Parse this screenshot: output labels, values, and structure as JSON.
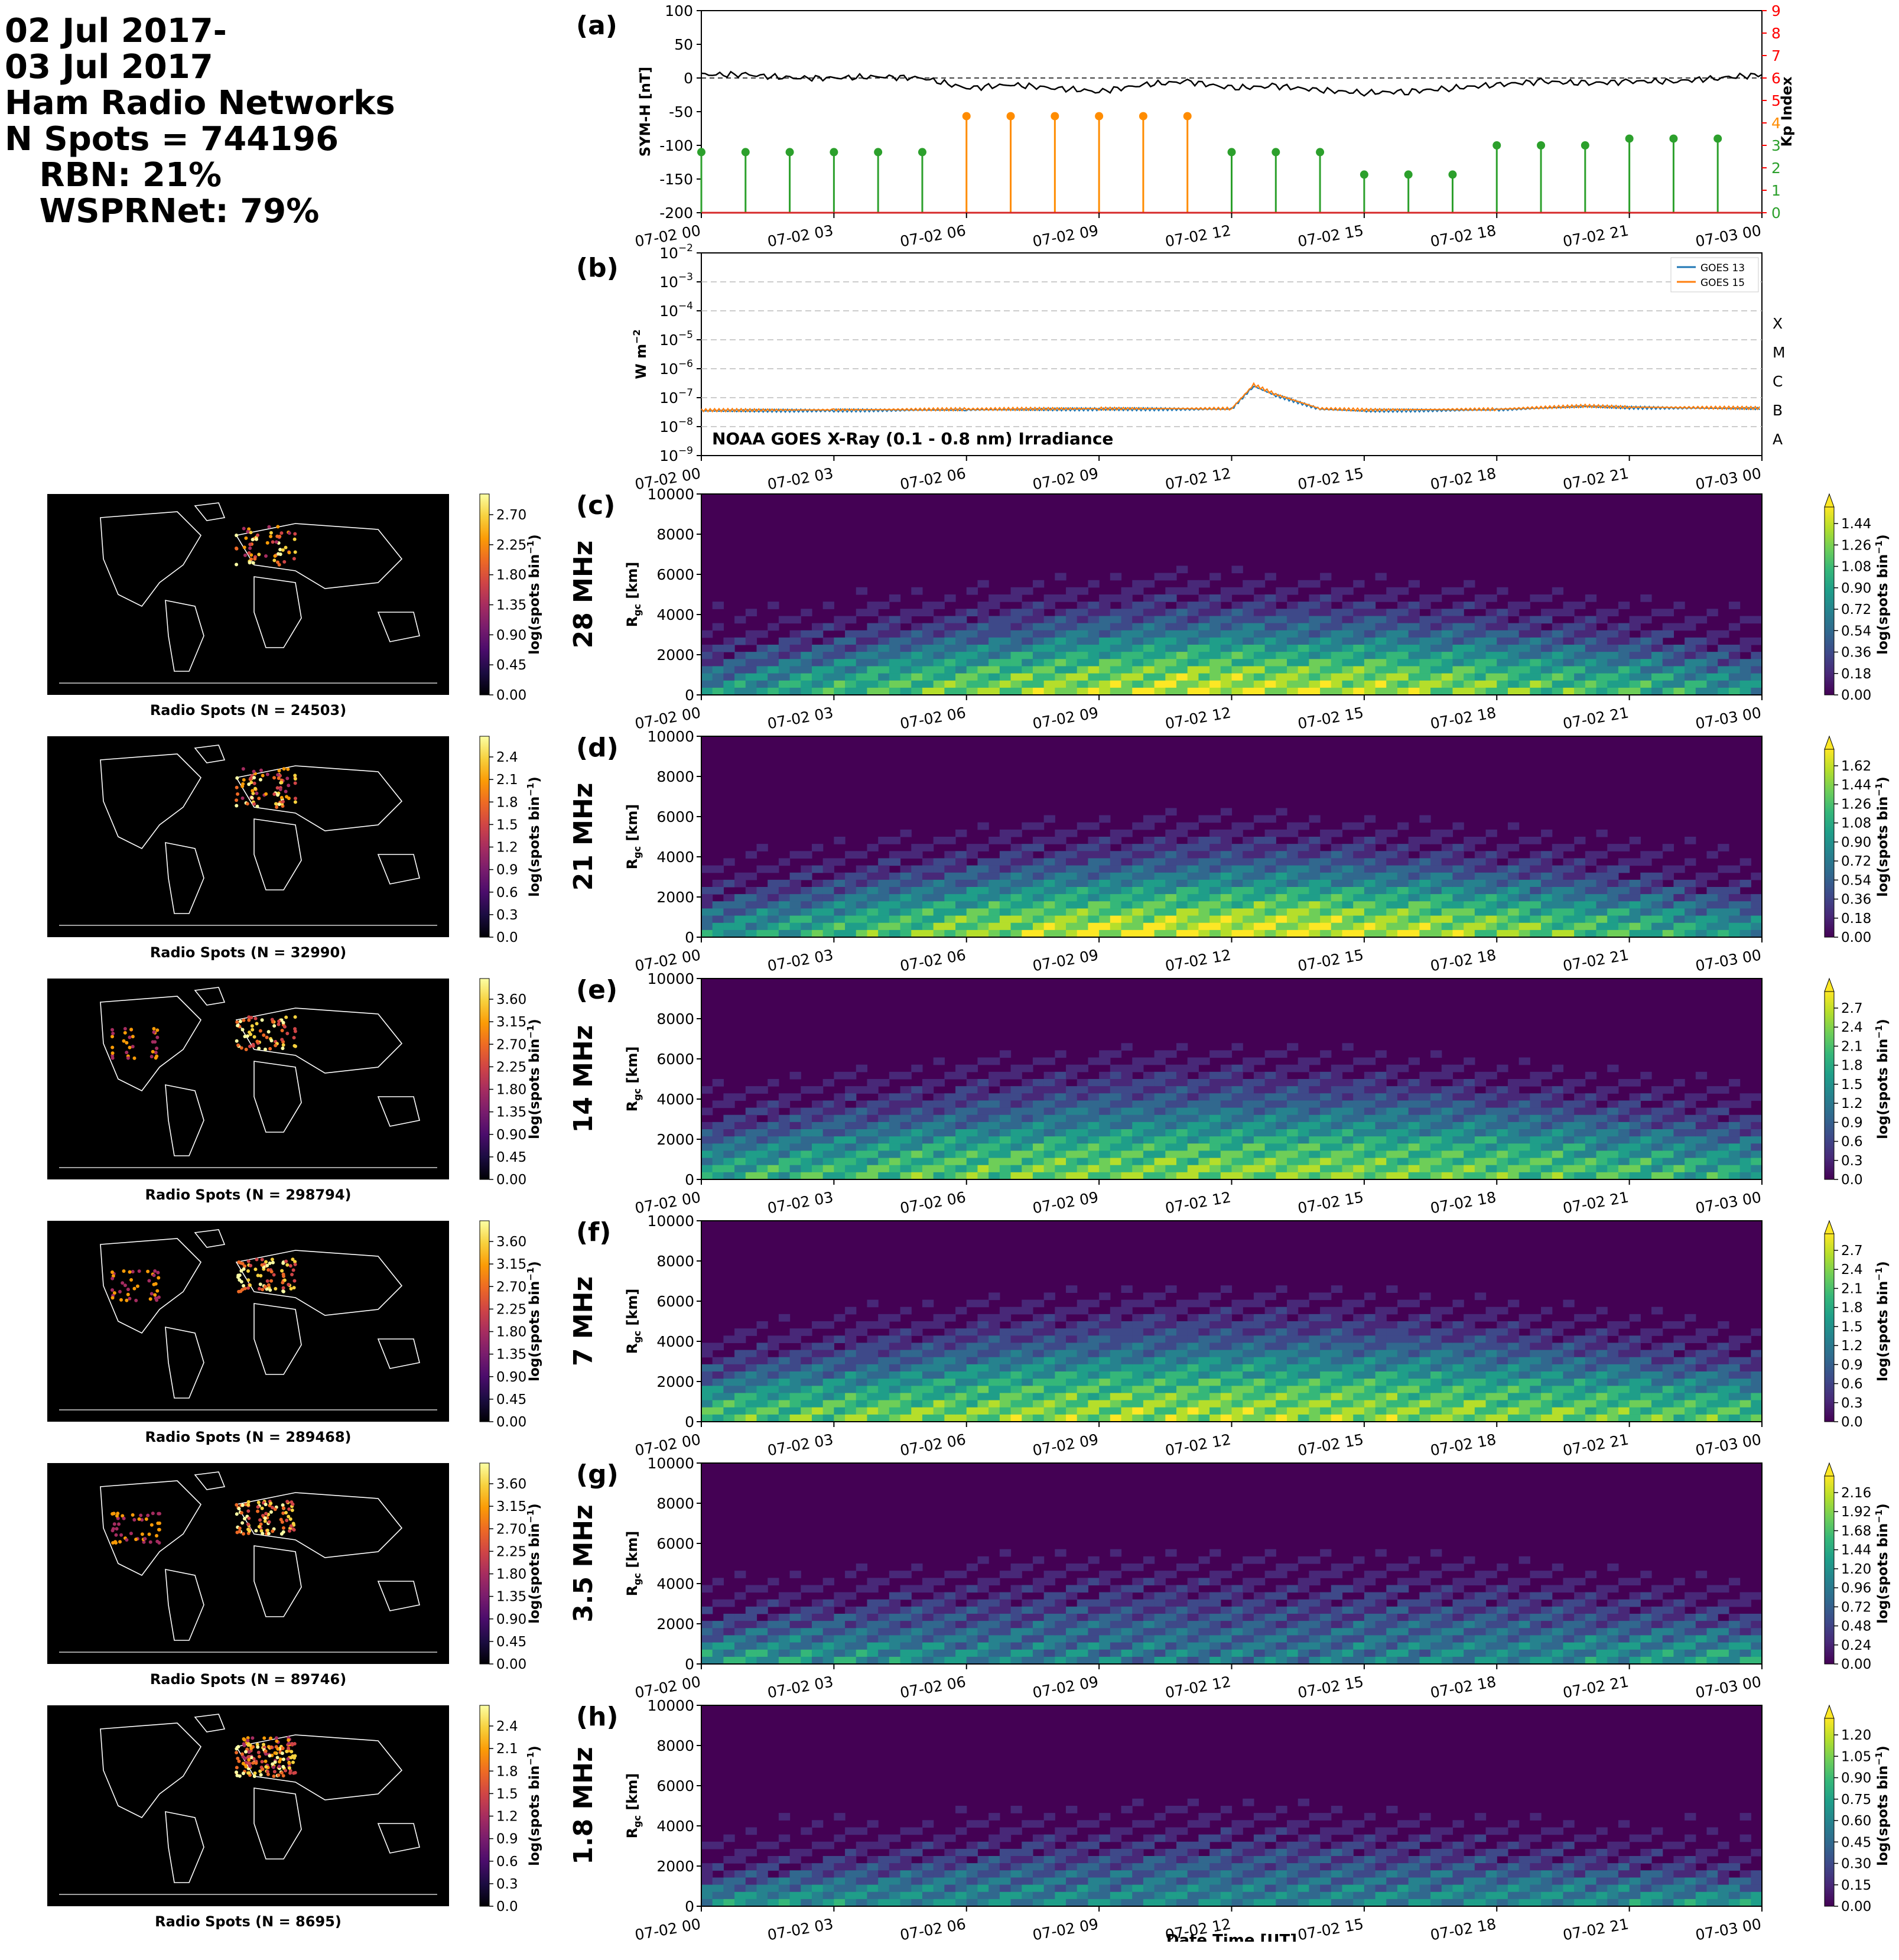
{
  "summary": {
    "line1": "02 Jul 2017-",
    "line2": "03 Jul 2017",
    "line3": "Ham Radio Networks",
    "line4": "N Spots = 744196",
    "line5": "   RBN: 21%",
    "line6": "   WSPRNet: 79%"
  },
  "time_ticks": [
    "07-02 00",
    "07-02 03",
    "07-02 06",
    "07-02 09",
    "07-02 12",
    "07-02 15",
    "07-02 18",
    "07-02 21",
    "07-03 00"
  ],
  "xlabel_bottom": "Date Time [UT]",
  "panel_a": {
    "letter": "(a)",
    "ylabel_left": "SYM-H [nT]",
    "ylabel_right": "Kp Index",
    "left_ticks": [
      "100",
      "50",
      "0",
      "-50",
      "-100",
      "-150",
      "-200"
    ],
    "right_ticks": [
      "9",
      "8",
      "7",
      "6",
      "5",
      "4",
      "3",
      "2",
      "1",
      "0"
    ]
  },
  "panel_b": {
    "letter": "(b)",
    "ylabel": "W m",
    "ylabel_sup": "−2",
    "annotation": "NOAA GOES X-Ray (0.1 - 0.8 nm) Irradiance",
    "legend": [
      "GOES 13",
      "GOES 15"
    ],
    "y_ticks_base": "10",
    "y_ticks_exp": [
      "−2",
      "−3",
      "−4",
      "−5",
      "−6",
      "−7",
      "−8",
      "−9"
    ],
    "flare_classes": [
      "X",
      "M",
      "C",
      "B",
      "A"
    ]
  },
  "rgc_label": "R",
  "rgc_sub": "gc",
  "rgc_unit": " [km]",
  "rgc_ticks": [
    "10000",
    "8000",
    "6000",
    "4000",
    "2000",
    "0"
  ],
  "cbar_label": "log(spots bin",
  "cbar_label_sup": "−1",
  "cbar_label_end": ")",
  "map_label_prefix": "Radio Spots (N = ",
  "bands": [
    {
      "letter": "(c)",
      "freq": "28 MHz",
      "n": "24503",
      "map_ticks": [
        "2.70",
        "2.25",
        "1.80",
        "1.35",
        "0.90",
        "0.45",
        "0.00"
      ],
      "ticks": [
        "1.44",
        "1.26",
        "1.08",
        "0.90",
        "0.72",
        "0.54",
        "0.36",
        "0.18",
        "0.00"
      ]
    },
    {
      "letter": "(d)",
      "freq": "21 MHz",
      "n": "32990",
      "map_ticks": [
        "2.4",
        "2.1",
        "1.8",
        "1.5",
        "1.2",
        "0.9",
        "0.6",
        "0.3",
        "0.0"
      ],
      "ticks": [
        "1.62",
        "1.44",
        "1.26",
        "1.08",
        "0.90",
        "0.72",
        "0.54",
        "0.36",
        "0.18",
        "0.00"
      ]
    },
    {
      "letter": "(e)",
      "freq": "14 MHz",
      "n": "298794",
      "map_ticks": [
        "3.60",
        "3.15",
        "2.70",
        "2.25",
        "1.80",
        "1.35",
        "0.90",
        "0.45",
        "0.00"
      ],
      "ticks": [
        "2.7",
        "2.4",
        "2.1",
        "1.8",
        "1.5",
        "1.2",
        "0.9",
        "0.6",
        "0.3",
        "0.0"
      ]
    },
    {
      "letter": "(f)",
      "freq": "7 MHz",
      "n": "289468",
      "map_ticks": [
        "3.60",
        "3.15",
        "2.70",
        "2.25",
        "1.80",
        "1.35",
        "0.90",
        "0.45",
        "0.00"
      ],
      "ticks": [
        "2.7",
        "2.4",
        "2.1",
        "1.8",
        "1.5",
        "1.2",
        "0.9",
        "0.6",
        "0.3",
        "0.0"
      ]
    },
    {
      "letter": "(g)",
      "freq": "3.5 MHz",
      "n": "89746",
      "map_ticks": [
        "3.60",
        "3.15",
        "2.70",
        "2.25",
        "1.80",
        "1.35",
        "0.90",
        "0.45",
        "0.00"
      ],
      "ticks": [
        "2.16",
        "1.92",
        "1.68",
        "1.44",
        "1.20",
        "0.96",
        "0.72",
        "0.48",
        "0.24",
        "0.00"
      ]
    },
    {
      "letter": "(h)",
      "freq": "1.8 MHz",
      "n": "8695",
      "map_ticks": [
        "2.4",
        "2.1",
        "1.8",
        "1.5",
        "1.2",
        "0.9",
        "0.6",
        "0.3",
        "0.0"
      ],
      "ticks": [
        "1.20",
        "1.05",
        "0.90",
        "0.75",
        "0.60",
        "0.45",
        "0.30",
        "0.15",
        "0.00"
      ]
    }
  ],
  "colors": {
    "sym_h": "#000000",
    "kp_low": "#2ca02c",
    "kp_storm": "#ff8c00",
    "goes13": "#1f77b4",
    "goes15": "#ff7f0e",
    "axis_right": "#ff0000"
  },
  "chart_data": [
    {
      "type": "line",
      "title": "",
      "ylabel": "SYM-H [nT]",
      "ylim": [
        -200,
        100
      ],
      "x": [
        "07-02 00",
        "07-02 01",
        "07-02 02",
        "07-02 03",
        "07-02 04",
        "07-02 05",
        "07-02 06",
        "07-02 07",
        "07-02 08",
        "07-02 09",
        "07-02 10",
        "07-02 11",
        "07-02 12",
        "07-02 13",
        "07-02 14",
        "07-02 15",
        "07-02 16",
        "07-02 17",
        "07-02 18",
        "07-02 19",
        "07-02 20",
        "07-02 21",
        "07-02 22",
        "07-02 23",
        "07-03 00"
      ],
      "series": [
        {
          "values": [
            5,
            5,
            0,
            0,
            2,
            0,
            -15,
            -10,
            -15,
            -20,
            -10,
            -5,
            -15,
            -12,
            -18,
            -22,
            -20,
            -15,
            -10,
            -5,
            -8,
            -5,
            -5,
            0,
            5
          ]
        }
      ]
    },
    {
      "type": "bar",
      "ylabel": "Kp Index",
      "ylim": [
        0,
        9
      ],
      "x": [
        "07-02 00",
        "07-02 01",
        "07-02 02",
        "07-02 03",
        "07-02 04",
        "07-02 05",
        "07-02 06",
        "07-02 07",
        "07-02 08",
        "07-02 09",
        "07-02 10",
        "07-02 11",
        "07-02 12",
        "07-02 13",
        "07-02 14",
        "07-02 15",
        "07-02 16",
        "07-02 17",
        "07-02 18",
        "07-02 19",
        "07-02 20",
        "07-02 21",
        "07-02 22",
        "07-02 23"
      ],
      "values": [
        2.7,
        2.7,
        2.7,
        2.7,
        2.7,
        2.7,
        4.3,
        4.3,
        4.3,
        4.3,
        4.3,
        4.3,
        2.7,
        2.7,
        2.7,
        1.7,
        1.7,
        1.7,
        3.0,
        3.0,
        3.0,
        3.3,
        3.3,
        3.3
      ]
    },
    {
      "type": "line",
      "ylabel": "W m−2",
      "log_scale": true,
      "ylim": [
        1e-09,
        0.01
      ],
      "x": [
        "07-02 00",
        "07-02 03",
        "07-02 06",
        "07-02 09",
        "07-02 12",
        "07-02 12.5",
        "07-02 13",
        "07-02 14",
        "07-02 15",
        "07-02 18",
        "07-02 20",
        "07-02 21",
        "07-03 00"
      ],
      "series": [
        {
          "name": "GOES 13",
          "values": [
            3.5e-08,
            3.6e-08,
            3.8e-08,
            4e-08,
            4e-08,
            2.5e-07,
            1.2e-07,
            4e-08,
            3.5e-08,
            3.8e-08,
            5e-08,
            4.5e-08,
            4.2e-08
          ]
        },
        {
          "name": "GOES 15",
          "values": [
            3.7e-08,
            3.8e-08,
            4e-08,
            4.2e-08,
            4.2e-08,
            2.8e-07,
            1.3e-07,
            4.2e-08,
            3.8e-08,
            4e-08,
            5.2e-08,
            4.7e-08,
            4.4e-08
          ]
        }
      ]
    }
  ]
}
